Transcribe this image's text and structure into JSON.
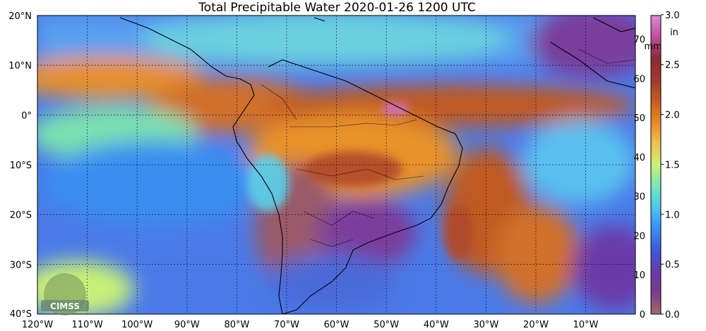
{
  "title": "Total Precipitable Water  2020-01-26 1200 UTC",
  "lat_labels": [
    "20°N",
    "10°N",
    "0°",
    "10°S",
    "20°S",
    "30°S",
    "40°S"
  ],
  "lon_labels": [
    "120°W",
    "110°W",
    "100°W",
    "90°W",
    "80°W",
    "70°W",
    "60°W",
    "50°W",
    "40°W",
    "30°W",
    "20°W",
    "10°W"
  ],
  "colorbar": {
    "mm_unit": "mm",
    "in_unit": "in",
    "mm_ticks": [
      "0",
      "10",
      "20",
      "30",
      "40",
      "50",
      "60",
      "70"
    ],
    "in_ticks": [
      "0.0",
      "0.5",
      "1.0",
      "1.5",
      "2.0",
      "2.5",
      "3.0"
    ],
    "colors": [
      "#a06a6a",
      "#7a3c8c",
      "#6a3aa8",
      "#3d5ad8",
      "#3a8ef0",
      "#4ac8f0",
      "#7ae8b8",
      "#c8f078",
      "#f0c050",
      "#e88a28",
      "#c85a20",
      "#a03a2a",
      "#8c2a3a",
      "#c050a0",
      "#e08ad0"
    ]
  },
  "logo": {
    "text": "CIMSS"
  }
}
